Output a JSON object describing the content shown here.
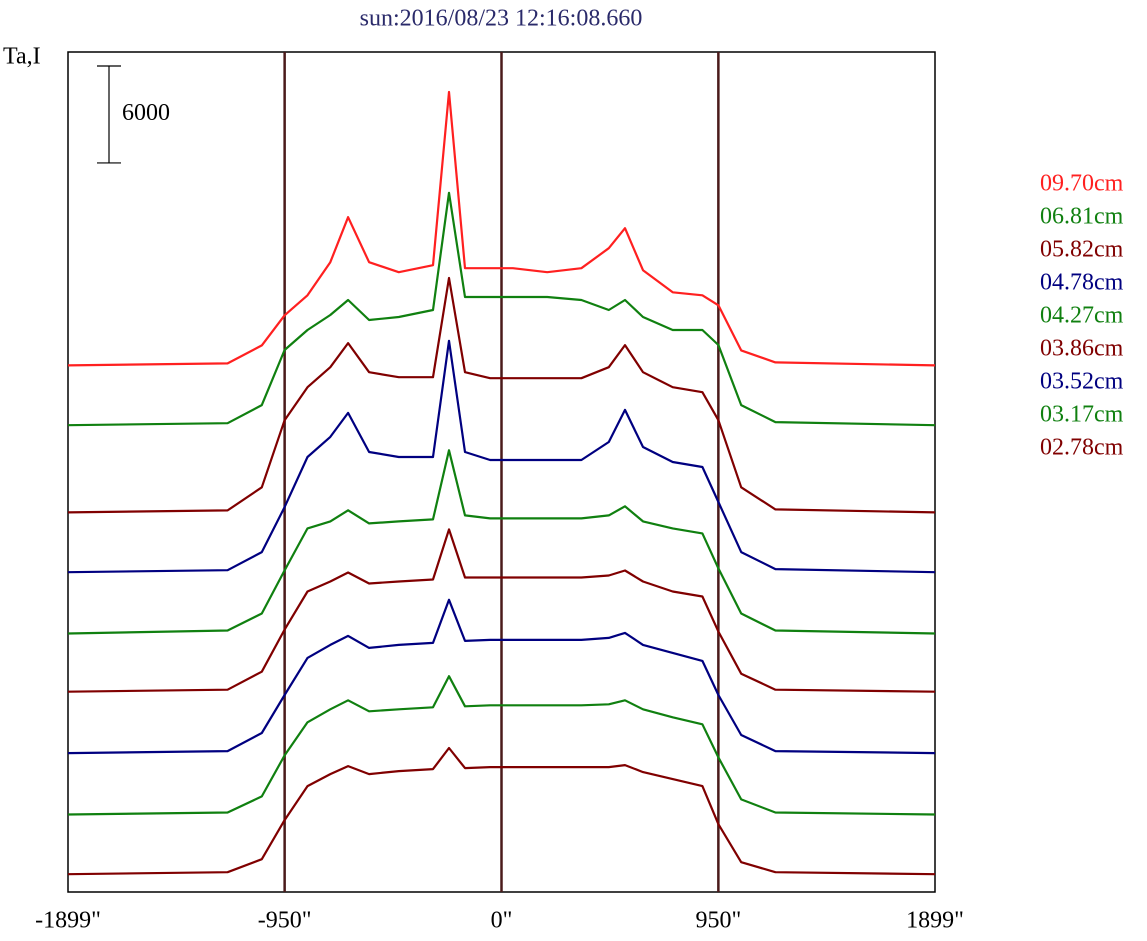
{
  "chart_data": {
    "type": "line",
    "title": "sun:2016/08/23 12:16:08.660",
    "ylabel": "Ta,I",
    "scale_bar": 6000,
    "xlim": [
      -1899,
      1899
    ],
    "ylim": [
      0,
      52000
    ],
    "xticks": [
      {
        "value": -1899,
        "label": "-1899\""
      },
      {
        "value": -950,
        "label": "-950\""
      },
      {
        "value": 0,
        "label": "0\""
      },
      {
        "value": 950,
        "label": "950\""
      },
      {
        "value": 1899,
        "label": "1899\""
      }
    ],
    "grid": true,
    "x": [
      -1899,
      -1200,
      -1050,
      -950,
      -850,
      -750,
      -672,
      -580,
      -450,
      -300,
      -230,
      -160,
      -50,
      50,
      200,
      350,
      470,
      541,
      620,
      750,
      880,
      950,
      1050,
      1200,
      1899
    ],
    "series": [
      {
        "name": "09.70cm",
        "color": "#ff2020",
        "values": [
          32600,
          32724,
          33840,
          35700,
          36940,
          38986,
          41776,
          38986,
          38366,
          38800,
          49526,
          38614,
          38614,
          38614,
          38366,
          38614,
          39854,
          41094,
          38490,
          37126,
          36940,
          36320,
          33530,
          32786,
          32600
        ]
      },
      {
        "name": "06.81cm",
        "color": "#108010",
        "values": [
          28900,
          29024,
          30140,
          33550,
          34790,
          35720,
          36650,
          35410,
          35596,
          36030,
          43284,
          36836,
          36836,
          36836,
          36836,
          36650,
          36030,
          36650,
          35596,
          34790,
          34790,
          33860,
          30140,
          29086,
          28900
        ]
      },
      {
        "name": "05.82cm",
        "color": "#800000",
        "values": [
          23500,
          23624,
          25050,
          29204,
          31250,
          32490,
          33978,
          32180,
          31870,
          31870,
          38008,
          32180,
          31808,
          31808,
          31808,
          31808,
          32490,
          33854,
          32180,
          31250,
          30940,
          29204,
          25050,
          23686,
          23500
        ]
      },
      {
        "name": "04.78cm",
        "color": "#000080",
        "values": [
          19800,
          19924,
          21040,
          23830,
          26930,
          28170,
          29658,
          27240,
          26930,
          26930,
          34122,
          27240,
          26744,
          26744,
          26744,
          26744,
          27860,
          29844,
          27550,
          26620,
          26310,
          24140,
          21040,
          19986,
          19800
        ]
      },
      {
        "name": "04.27cm",
        "color": "#108010",
        "values": [
          16000,
          16186,
          17240,
          19906,
          22510,
          22944,
          23626,
          22820,
          22944,
          23068,
          27346,
          23316,
          23130,
          23130,
          23130,
          23130,
          23316,
          23874,
          22944,
          22510,
          22200,
          20030,
          17240,
          16186,
          16000
        ]
      },
      {
        "name": "03.86cm",
        "color": "#800000",
        "values": [
          12400,
          12524,
          13640,
          16244,
          18600,
          19220,
          19778,
          19096,
          19220,
          19344,
          22444,
          19468,
          19468,
          19468,
          19468,
          19468,
          19592,
          19902,
          19220,
          18600,
          18290,
          16120,
          13516,
          12524,
          12400
        ]
      },
      {
        "name": "03.52cm",
        "color": "#000080",
        "values": [
          8600,
          8724,
          9840,
          12196,
          14490,
          15296,
          15854,
          15110,
          15296,
          15420,
          18086,
          15544,
          15606,
          15606,
          15606,
          15606,
          15730,
          16040,
          15296,
          14800,
          14304,
          12196,
          9716,
          8724,
          8600
        ]
      },
      {
        "name": "03.17cm",
        "color": "#108010",
        "values": [
          4800,
          4924,
          5916,
          8458,
          10504,
          11310,
          11868,
          11186,
          11310,
          11434,
          13356,
          11496,
          11558,
          11558,
          11558,
          11558,
          11620,
          11868,
          11310,
          10814,
          10380,
          8334,
          5730,
          4924,
          4800
        ]
      },
      {
        "name": "02.78cm",
        "color": "#800000",
        "values": [
          1100,
          1224,
          2030,
          4448,
          6556,
          7300,
          7796,
          7300,
          7486,
          7610,
          8912,
          7672,
          7734,
          7734,
          7734,
          7734,
          7734,
          7858,
          7424,
          6990,
          6556,
          4200,
          1844,
          1224,
          1100
        ]
      }
    ]
  }
}
